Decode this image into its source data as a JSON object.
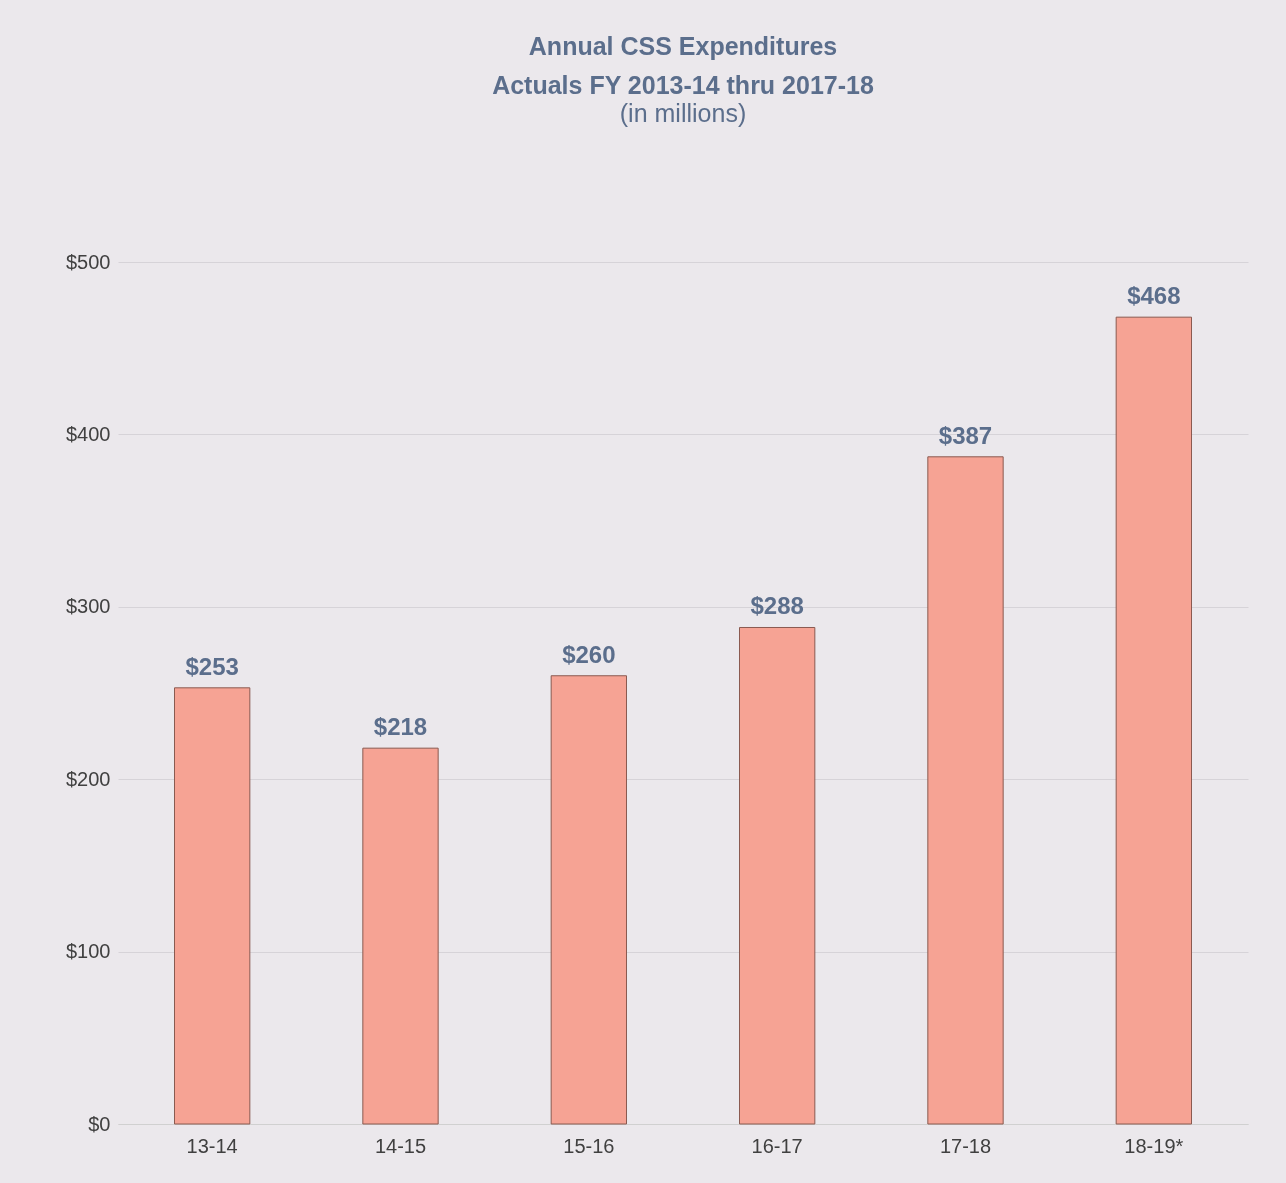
{
  "chart_data": {
    "type": "bar",
    "title": [
      "Annual CSS Expenditures",
      "Actuals FY 2013-14 thru 2017-18"
    ],
    "subtitle": "(in millions)",
    "categories": [
      "13-14",
      "14-15",
      "15-16",
      "16-17",
      "17-18",
      "18-19*"
    ],
    "values": [
      253,
      218,
      260,
      288,
      387,
      468
    ],
    "value_labels": [
      "$253",
      "$218",
      "$260",
      "$288",
      "$387",
      "$468"
    ],
    "color": "#f6a394",
    "ylim": [
      0,
      500
    ],
    "yticks": [
      {
        "value": 0,
        "label": "$0"
      },
      {
        "value": 100,
        "label": "$100"
      },
      {
        "value": 200,
        "label": "$200"
      },
      {
        "value": 300,
        "label": "$300"
      },
      {
        "value": 400,
        "label": "$400"
      },
      {
        "value": 500,
        "label": "$500"
      }
    ],
    "grid": "y"
  }
}
